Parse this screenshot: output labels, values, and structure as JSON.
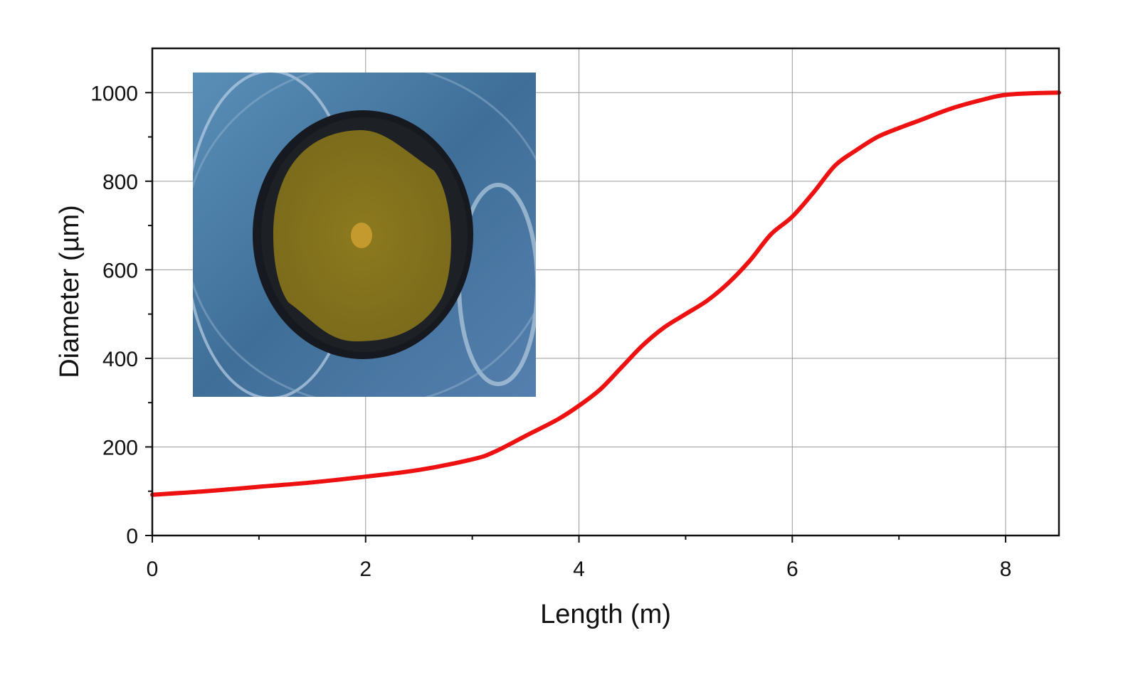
{
  "chart_data": {
    "type": "line",
    "title": "",
    "xlabel": "Length (m)",
    "ylabel": "Diameter (µm)",
    "xlim": [
      0,
      8.5
    ],
    "ylim": [
      0,
      1100
    ],
    "xticks": [
      0,
      2,
      4,
      6,
      8
    ],
    "yticks": [
      0,
      200,
      400,
      600,
      800,
      1000
    ],
    "grid": true,
    "legend": "none",
    "series": [
      {
        "color": "#ee1111",
        "x": [
          0,
          0.5,
          1.0,
          1.5,
          2.0,
          2.5,
          3.0,
          3.2,
          3.5,
          3.8,
          4.0,
          4.2,
          4.4,
          4.6,
          4.8,
          5.0,
          5.2,
          5.4,
          5.6,
          5.8,
          6.0,
          6.2,
          6.4,
          6.6,
          6.8,
          7.0,
          7.2,
          7.5,
          7.8,
          8.0,
          8.3,
          8.5
        ],
        "y": [
          92,
          100,
          110,
          120,
          133,
          148,
          172,
          188,
          225,
          262,
          293,
          330,
          380,
          430,
          470,
          500,
          530,
          570,
          620,
          680,
          720,
          775,
          835,
          870,
          900,
          920,
          938,
          965,
          985,
          995,
          999,
          1000
        ]
      }
    ],
    "inset": "fiber-cross-section-micrograph"
  }
}
